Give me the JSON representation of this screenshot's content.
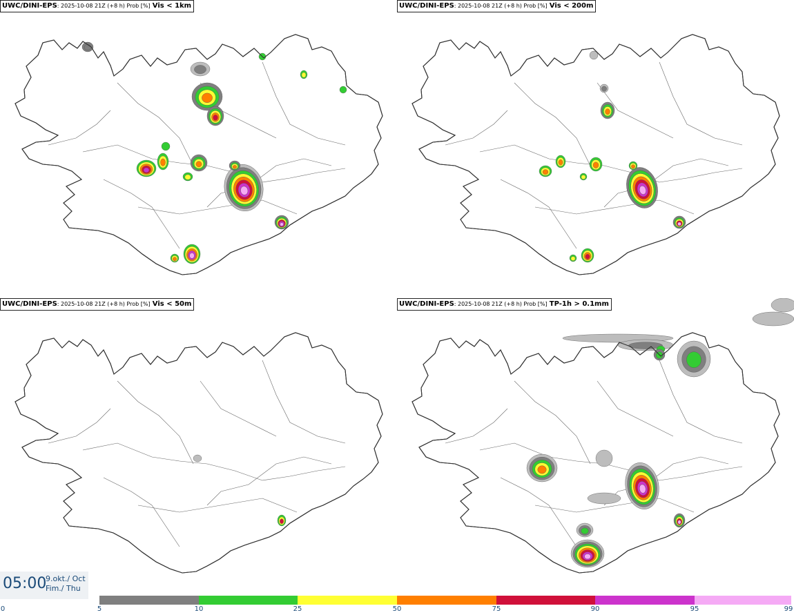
{
  "panels": [
    {
      "model": "UWC/DINI-EPS",
      "meta": ": 2025-10-08 21Z (+8 h) Prob [%]",
      "var": "Vis < 1km"
    },
    {
      "model": "UWC/DINI-EPS",
      "meta": ": 2025-10-08 21Z (+8 h) Prob [%]",
      "var": "Vis < 200m"
    },
    {
      "model": "UWC/DINI-EPS",
      "meta": ": 2025-10-08 21Z (+8 h) Prob [%]",
      "var": "Vis < 50m"
    },
    {
      "model": "UWC/DINI-EPS",
      "meta": ": 2025-10-08 21Z (+8 h) Prob [%]",
      "var": "TP-1h > 0.1mm"
    }
  ],
  "time": {
    "clock": "05:00",
    "date_line1": "9.okt./ Oct",
    "date_line2": "Fim./ Thu"
  },
  "legend": {
    "ticks": [
      "0",
      "5",
      "10",
      "25",
      "50",
      "75",
      "90",
      "95",
      "99"
    ],
    "colors": [
      "#bdbdbd",
      "#7f7f7f",
      "#33cc33",
      "#ffff33",
      "#ff7f00",
      "#d0103a",
      "#cc33cc",
      "#f5aaf5"
    ]
  },
  "icons": {
    "map_base": "iceland-outline-map"
  }
}
